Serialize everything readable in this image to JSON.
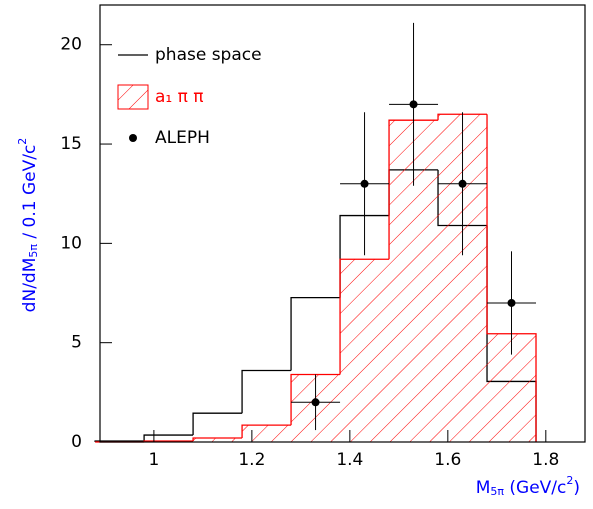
{
  "chart_data": {
    "type": "histogram",
    "ylabel": [
      "dN/dM",
      "5π",
      " / 0.1 GeV/c",
      "2"
    ],
    "xlabel": [
      "M",
      "5π",
      " (GeV/c",
      "2",
      ")"
    ],
    "bins": [
      0.88,
      0.98,
      1.08,
      1.18,
      1.28,
      1.38,
      1.48,
      1.58,
      1.68,
      1.78
    ],
    "series": [
      {
        "name": "phase space",
        "color": "#000000",
        "values": [
          0.05,
          0.35,
          1.45,
          3.6,
          7.27,
          11.4,
          13.7,
          10.9,
          3.05
        ]
      },
      {
        "name": "a₁ π π",
        "color": "#ff0000",
        "hatched": true,
        "values": [
          0,
          0.05,
          0.2,
          0.85,
          3.4,
          9.2,
          16.2,
          16.5,
          5.45
        ]
      }
    ],
    "points": {
      "name": "ALEPH",
      "color": "#000000",
      "x": [
        1.33,
        1.43,
        1.53,
        1.63,
        1.73
      ],
      "values": [
        2,
        13,
        17,
        13,
        7
      ],
      "errors": [
        1.4,
        3.6,
        4.1,
        3.6,
        2.6
      ],
      "xerr": [
        0.05,
        0.05,
        0.05,
        0.05,
        0.05
      ]
    },
    "xlim": [
      0.89,
      1.88
    ],
    "ylim": [
      0,
      22
    ],
    "xticks": [
      1,
      1.2,
      1.4,
      1.6,
      1.8
    ],
    "yticks": [
      0,
      5,
      10,
      15,
      20
    ]
  }
}
